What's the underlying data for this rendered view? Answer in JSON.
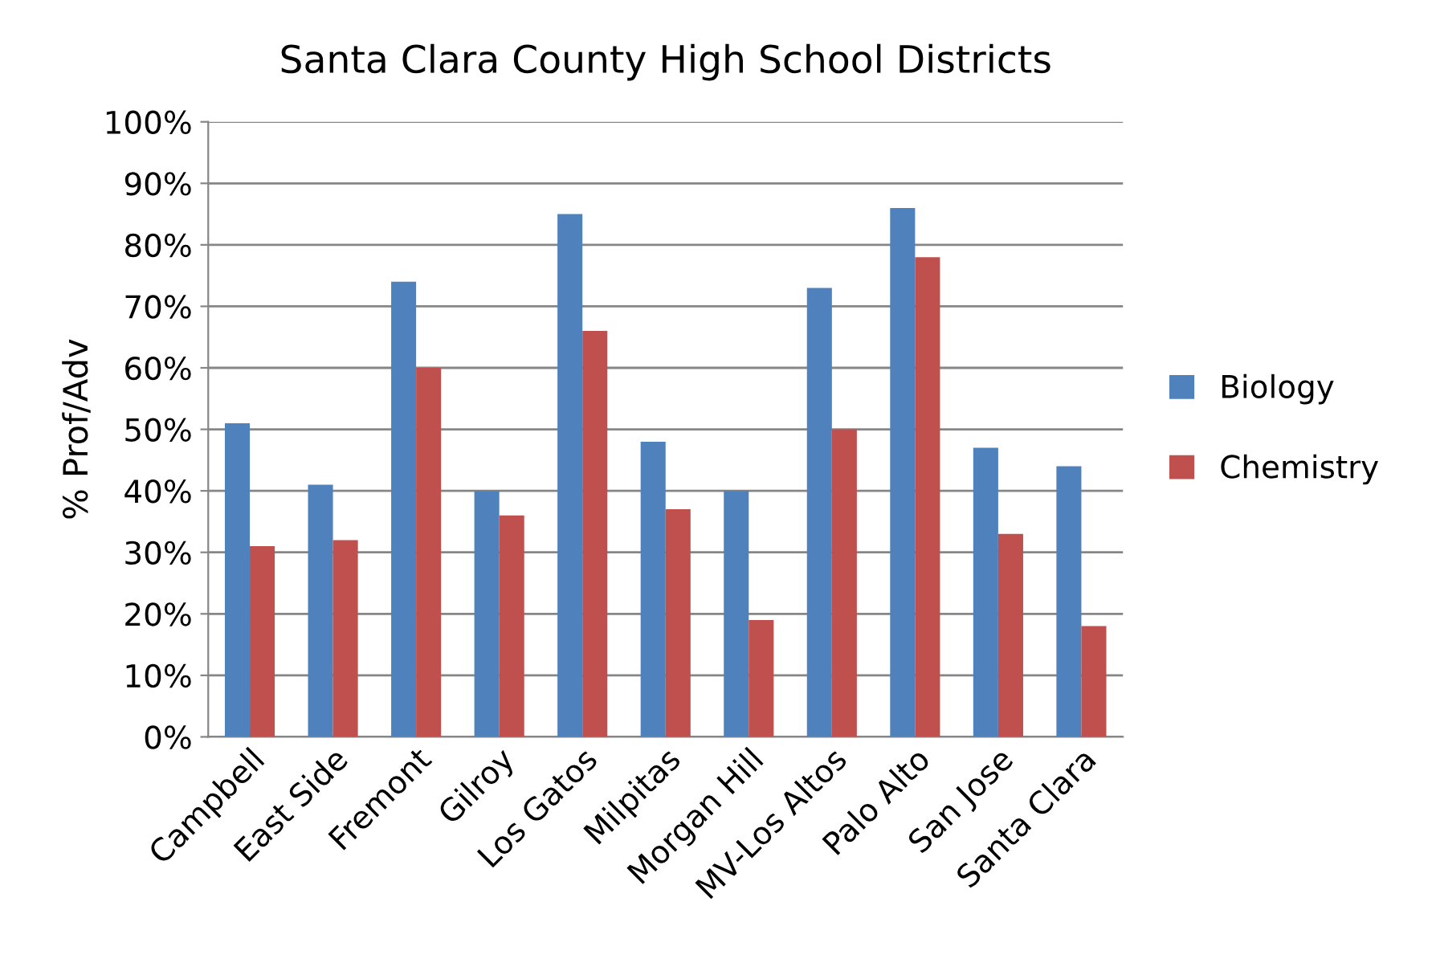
{
  "chart_data": {
    "type": "bar",
    "title": "Santa Clara County High School Districts",
    "ylabel": "% Prof/Adv",
    "categories": [
      "Campbell",
      "East Side",
      "Fremont",
      "Gilroy",
      "Los Gatos",
      "Milpitas",
      "Morgan Hill",
      "MV-Los Altos",
      "Palo Alto",
      "San Jose",
      "Santa Clara"
    ],
    "series": [
      {
        "name": "Biology",
        "color": "#4f81bd",
        "values": [
          51,
          41,
          74,
          40,
          85,
          48,
          40,
          73,
          86,
          47,
          44
        ]
      },
      {
        "name": "Chemistry",
        "color": "#c0504d",
        "values": [
          31,
          32,
          60,
          36,
          66,
          37,
          19,
          50,
          78,
          33,
          18
        ]
      }
    ],
    "ylim": [
      0,
      100
    ],
    "yticks": [
      {
        "value": 0,
        "label": "0%"
      },
      {
        "value": 10,
        "label": "10%"
      },
      {
        "value": 20,
        "label": "20%"
      },
      {
        "value": 30,
        "label": "30%"
      },
      {
        "value": 40,
        "label": "40%"
      },
      {
        "value": 50,
        "label": "50%"
      },
      {
        "value": 60,
        "label": "60%"
      },
      {
        "value": 70,
        "label": "70%"
      },
      {
        "value": 80,
        "label": "80%"
      },
      {
        "value": 90,
        "label": "90%"
      },
      {
        "value": 100,
        "label": "100%"
      }
    ],
    "grid": "y",
    "legend": "right"
  }
}
